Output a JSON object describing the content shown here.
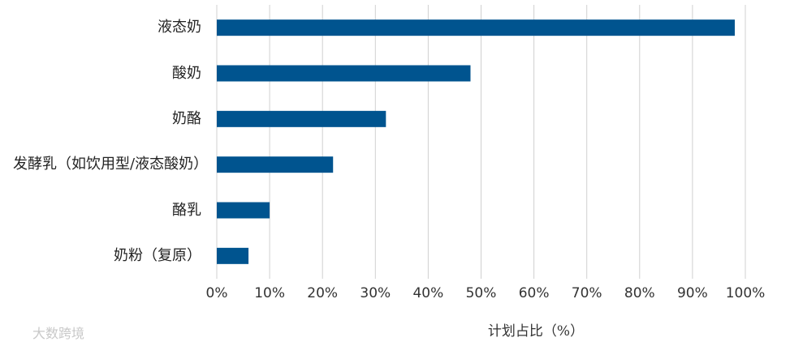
{
  "chart_data": {
    "type": "bar",
    "orientation": "horizontal",
    "categories": [
      "液态奶",
      "酸奶",
      "奶酪",
      "发酵乳（如饮用型/液态酸奶）",
      "酪乳",
      "奶粉（复原）"
    ],
    "values": [
      98,
      48,
      32,
      22,
      10,
      6
    ],
    "color": "#00548f",
    "xlabel": "计划占比（%）",
    "xlim": [
      0,
      100
    ],
    "xticks": [
      {
        "value": 0,
        "label": "0%"
      },
      {
        "value": 10,
        "label": "10%"
      },
      {
        "value": 20,
        "label": "20%"
      },
      {
        "value": 30,
        "label": "30%"
      },
      {
        "value": 40,
        "label": "40%"
      },
      {
        "value": 50,
        "label": "50%"
      },
      {
        "value": 60,
        "label": "60%"
      },
      {
        "value": 70,
        "label": "70%"
      },
      {
        "value": 80,
        "label": "80%"
      },
      {
        "value": 90,
        "label": "90%"
      },
      {
        "value": 100,
        "label": "100%"
      }
    ],
    "grid": true,
    "watermark": "大数跨境"
  }
}
